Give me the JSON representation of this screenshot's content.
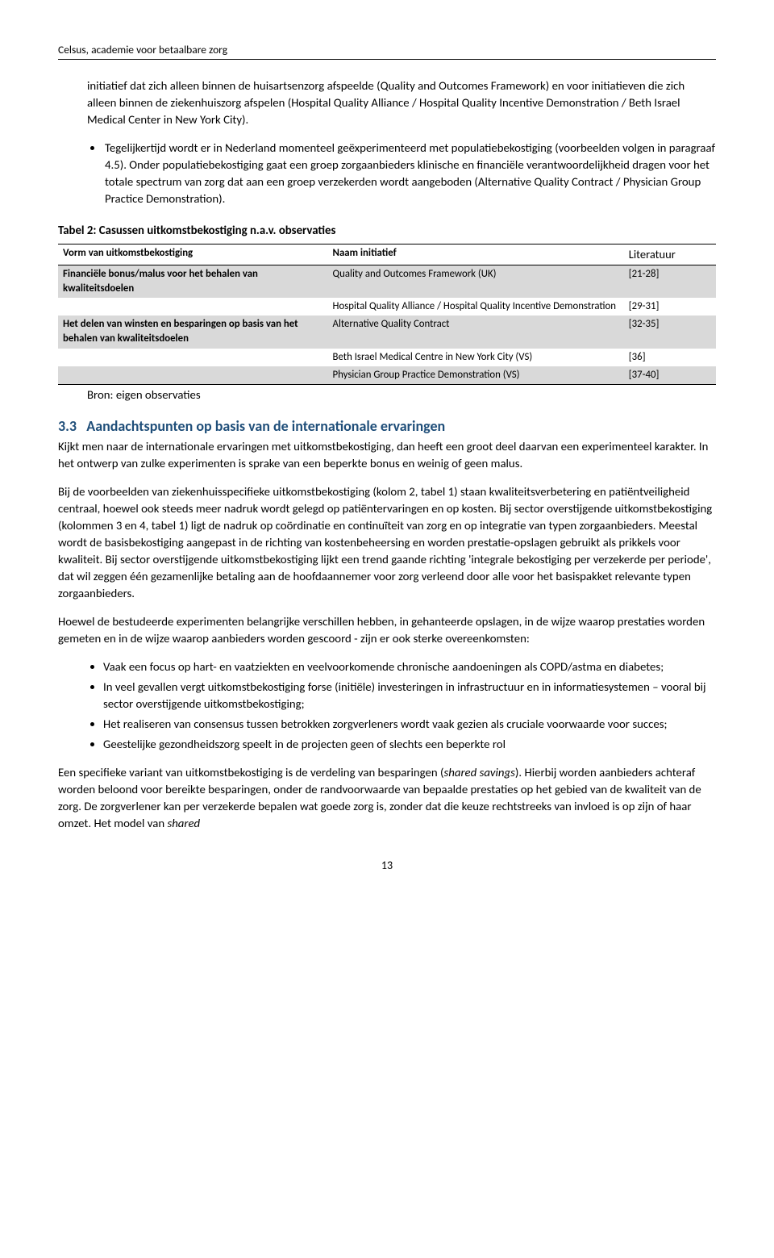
{
  "header": {
    "title": "Celsus, academie voor betaalbare zorg"
  },
  "intro": {
    "para": "initiatief dat zich alleen binnen de huisartsenzorg afspeelde (Quality and Outcomes Framework) en voor initiatieven die zich alleen binnen de ziekenhuiszorg afspelen (Hospital Quality Alliance / Hospital Quality Incentive Demonstration / Beth Israel Medical Center in New York City).",
    "bullet": "Tegelijkertijd wordt er in Nederland momenteel geëxperimenteerd met populatiebekostiging (voorbeelden volgen in paragraaf 4.5). Onder populatiebekostiging gaat een groep zorgaanbieders klinische en financiële verantwoordelijkheid dragen voor het totale spectrum van zorg dat aan een groep verzekerden wordt aangeboden (Alternative Quality Contract / Physician Group Practice Demonstration)."
  },
  "table": {
    "caption": "Tabel 2: Casussen uitkomstbekostiging n.a.v. observaties",
    "headers": {
      "c1": "Vorm van uitkomstbekostiging",
      "c2": "Naam initiatief",
      "c3": "Literatuur"
    },
    "rows": [
      {
        "shade": true,
        "c1": "Financiële bonus/malus voor het behalen van kwaliteitsdoelen",
        "c2": "Quality and Outcomes Framework (UK)",
        "c3": "[21-28]"
      },
      {
        "shade": false,
        "c1": "",
        "c2": "Hospital Quality Alliance / Hospital Quality Incentive Demonstration",
        "c3": "[29-31]"
      },
      {
        "shade": true,
        "c1": "Het delen van winsten en besparingen op basis van het behalen van kwaliteitsdoelen",
        "c2": "Alternative Quality Contract",
        "c3": "[32-35]"
      },
      {
        "shade": false,
        "c1": "",
        "c2": "Beth Israel Medical Centre in New York City (VS)",
        "c3": "[36]"
      },
      {
        "shade": true,
        "c1": "",
        "c2": "Physician Group Practice Demonstration (VS)",
        "c3": "[37-40]"
      }
    ],
    "source": "Bron: eigen observaties"
  },
  "section33": {
    "num": "3.3",
    "title": "Aandachtspunten op basis van de internationale ervaringen",
    "p1": "Kijkt men naar de internationale ervaringen met uitkomstbekostiging, dan heeft een groot deel daarvan een experimenteel karakter. In het ontwerp van zulke experimenten is sprake van een beperkte bonus en weinig of geen malus.",
    "p2": "Bij de voorbeelden van ziekenhuisspecifieke uitkomstbekostiging (kolom 2, tabel 1) staan kwaliteitsverbetering en patiëntveiligheid centraal, hoewel ook steeds meer nadruk wordt gelegd op patiëntervaringen en op kosten. Bij sector overstijgende uitkomstbekostiging (kolommen 3 en 4, tabel 1) ligt de nadruk op coördinatie en continuïteit van zorg en op integratie van typen zorgaanbieders. Meestal wordt de basisbekostiging aangepast in de richting  van kostenbeheersing en worden prestatie-opslagen gebruikt als prikkels voor kwaliteit. Bij sector overstijgende uitkomstbekostiging lijkt een trend gaande richting 'integrale bekostiging per verzekerde per periode', dat wil zeggen één gezamenlijke betaling aan de hoofdaannemer voor zorg verleend door alle voor het basispakket relevante typen zorgaanbieders.",
    "p3": "Hoewel de bestudeerde experimenten belangrijke verschillen hebben, in gehanteerde opslagen, in de wijze waarop prestaties worden gemeten en in de wijze waarop aanbieders worden gescoord - zijn er ook sterke overeenkomsten:",
    "bullets": [
      "Vaak een focus op hart- en vaatziekten en veelvoorkomende chronische aandoeningen als COPD/astma en diabetes;",
      "In veel gevallen vergt uitkomstbekostiging forse (initiële) investeringen in infrastructuur en in informatiesystemen – vooral bij sector overstijgende uitkomstbekostiging;",
      "Het realiseren van consensus tussen betrokken zorgverleners wordt vaak gezien als cruciale voorwaarde voor succes;",
      "Geestelijke gezondheidszorg speelt in de projecten geen of slechts een beperkte rol"
    ],
    "p4_prefix": "Een specifieke variant van uitkomstbekostiging is de verdeling van besparingen (",
    "p4_italic1": "shared savings",
    "p4_mid": "). Hierbij worden aanbieders achteraf worden beloond voor bereikte besparingen, onder de randvoorwaarde van bepaalde prestaties op het gebied van de kwaliteit van de zorg. De zorgverlener kan per verzekerde bepalen wat goede zorg is, zonder dat die keuze rechtstreeks van invloed is op zijn of haar omzet. Het model van ",
    "p4_italic2": "shared"
  },
  "page": {
    "number": "13"
  }
}
